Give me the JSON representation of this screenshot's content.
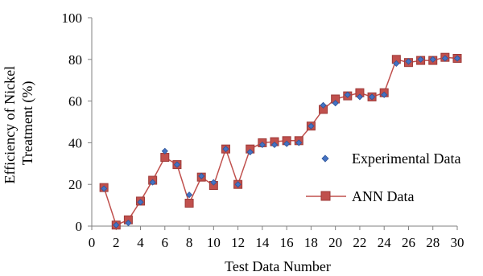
{
  "chart_data": {
    "type": "line",
    "xlabel": "Test Data Number",
    "ylabel_line1": "Efficiency of Nickel",
    "ylabel_line2": "Treatment  (%)",
    "xlim": [
      0,
      30
    ],
    "ylim": [
      0,
      100
    ],
    "xticks": [
      0,
      2,
      4,
      6,
      8,
      10,
      12,
      14,
      16,
      18,
      20,
      22,
      24,
      26,
      28,
      30
    ],
    "yticks": [
      0,
      20,
      40,
      60,
      80,
      100
    ],
    "grid": false,
    "legend_position": "right",
    "colors": {
      "experimental": "#4472C4",
      "ann": "#C0504D",
      "ann_stroke": "#9E3A38",
      "axis": "#808080"
    },
    "series": [
      {
        "name": "Experimental Data",
        "style": "scatter-diamond",
        "x": [
          1,
          2,
          3,
          4,
          5,
          6,
          7,
          8,
          9,
          10,
          11,
          12,
          13,
          14,
          15,
          16,
          17,
          18,
          19,
          20,
          21,
          22,
          23,
          24,
          25,
          26,
          27,
          28,
          29,
          30
        ],
        "y": [
          18,
          0.5,
          1.5,
          11.5,
          21,
          36,
          29.5,
          15,
          24,
          21,
          37,
          20,
          35.5,
          39,
          39,
          39.5,
          40,
          48,
          58,
          59,
          63,
          62,
          62,
          63,
          78,
          79,
          80,
          80,
          80.5,
          80.5
        ]
      },
      {
        "name": "ANN Data",
        "style": "line-square",
        "x": [
          1,
          2,
          3,
          4,
          5,
          6,
          7,
          8,
          9,
          10,
          11,
          12,
          13,
          14,
          15,
          16,
          17,
          18,
          19,
          20,
          21,
          22,
          23,
          24,
          25,
          26,
          27,
          28,
          29,
          30
        ],
        "y": [
          18.5,
          0.5,
          3,
          12,
          22,
          33,
          29.5,
          11,
          23.5,
          19.5,
          37,
          20,
          37,
          40,
          40.5,
          41,
          41,
          48,
          56,
          61,
          62.5,
          64,
          62,
          64,
          80,
          78.5,
          79.5,
          79.5,
          81,
          80.5
        ]
      }
    ]
  }
}
